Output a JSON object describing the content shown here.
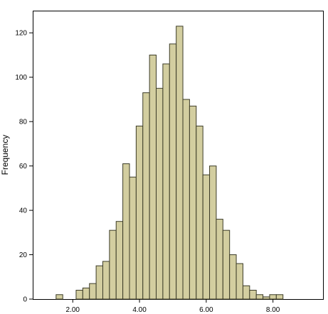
{
  "chart_data": {
    "type": "bar",
    "title": "",
    "xlabel": "",
    "ylabel": "Frequency",
    "bin_width": 0.2,
    "bins": [
      {
        "start": 1.5,
        "end": 1.7,
        "count": 2
      },
      {
        "start": 1.7,
        "end": 1.9,
        "count": 0
      },
      {
        "start": 1.9,
        "end": 2.1,
        "count": 0
      },
      {
        "start": 2.1,
        "end": 2.3,
        "count": 4
      },
      {
        "start": 2.3,
        "end": 2.5,
        "count": 5
      },
      {
        "start": 2.5,
        "end": 2.7,
        "count": 7
      },
      {
        "start": 2.7,
        "end": 2.9,
        "count": 15
      },
      {
        "start": 2.9,
        "end": 3.1,
        "count": 17
      },
      {
        "start": 3.1,
        "end": 3.3,
        "count": 31
      },
      {
        "start": 3.3,
        "end": 3.5,
        "count": 35
      },
      {
        "start": 3.5,
        "end": 3.7,
        "count": 61
      },
      {
        "start": 3.7,
        "end": 3.9,
        "count": 55
      },
      {
        "start": 3.9,
        "end": 4.1,
        "count": 78
      },
      {
        "start": 4.1,
        "end": 4.3,
        "count": 93
      },
      {
        "start": 4.3,
        "end": 4.5,
        "count": 110
      },
      {
        "start": 4.5,
        "end": 4.7,
        "count": 95
      },
      {
        "start": 4.7,
        "end": 4.9,
        "count": 106
      },
      {
        "start": 4.9,
        "end": 5.1,
        "count": 115
      },
      {
        "start": 5.1,
        "end": 5.3,
        "count": 123
      },
      {
        "start": 5.3,
        "end": 5.5,
        "count": 90
      },
      {
        "start": 5.5,
        "end": 5.7,
        "count": 87
      },
      {
        "start": 5.7,
        "end": 5.9,
        "count": 78
      },
      {
        "start": 5.9,
        "end": 6.1,
        "count": 56
      },
      {
        "start": 6.1,
        "end": 6.3,
        "count": 60
      },
      {
        "start": 6.3,
        "end": 6.5,
        "count": 36
      },
      {
        "start": 6.5,
        "end": 6.7,
        "count": 31
      },
      {
        "start": 6.7,
        "end": 6.9,
        "count": 20
      },
      {
        "start": 6.9,
        "end": 7.1,
        "count": 16
      },
      {
        "start": 7.1,
        "end": 7.3,
        "count": 6
      },
      {
        "start": 7.3,
        "end": 7.5,
        "count": 4
      },
      {
        "start": 7.5,
        "end": 7.7,
        "count": 2
      },
      {
        "start": 7.7,
        "end": 7.9,
        "count": 1
      },
      {
        "start": 7.9,
        "end": 8.1,
        "count": 2
      },
      {
        "start": 8.1,
        "end": 8.3,
        "count": 2
      }
    ],
    "xlim": [
      0.8,
      9.5
    ],
    "ylim": [
      0,
      130
    ],
    "x_ticks": [
      2,
      4,
      6,
      8
    ],
    "x_tick_labels": [
      "2.00",
      "4.00",
      "6.00",
      "8.00"
    ],
    "y_ticks": [
      0,
      20,
      40,
      60,
      80,
      100,
      120
    ],
    "y_tick_labels": [
      "0",
      "20",
      "40",
      "60",
      "80",
      "100",
      "120"
    ],
    "grid": false,
    "legend": "none",
    "colors": {
      "bar_fill": "#d3cea0",
      "bar_stroke": "#3c3c28",
      "axis": "#000000",
      "background": "#ffffff"
    }
  }
}
